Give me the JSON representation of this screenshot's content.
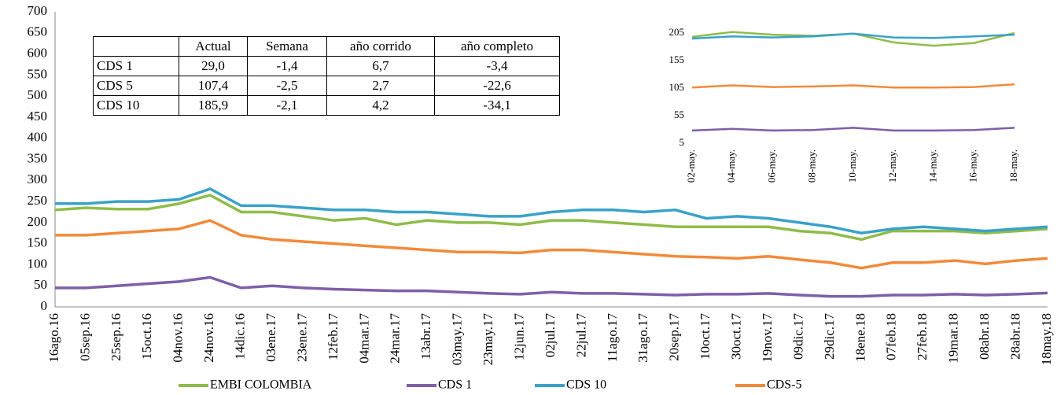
{
  "chart_data": [
    {
      "type": "line",
      "categories": [
        "16ago.16",
        "05sep.16",
        "25sep.16",
        "15oct.16",
        "04nov.16",
        "24nov.16",
        "14dic.16",
        "03ene.17",
        "23ene.17",
        "12feb.17",
        "04mar.17",
        "24mar.17",
        "13abr.17",
        "03may.17",
        "23may.17",
        "12jun.17",
        "02jul.17",
        "22jul.17",
        "11ago.17",
        "31ago.17",
        "20sep.17",
        "10oct.17",
        "30oct.17",
        "19nov.17",
        "09dic.17",
        "29dic.17",
        "18ene.18",
        "07feb.18",
        "27feb.18",
        "19mar.18",
        "08abr.18",
        "28abr.18",
        "18may.18"
      ],
      "series": [
        {
          "name": "EMBI COLOMBIA",
          "color": "#8fbc4a",
          "values": [
            230,
            235,
            232,
            232,
            245,
            265,
            225,
            225,
            215,
            205,
            210,
            195,
            205,
            200,
            200,
            195,
            205,
            205,
            200,
            195,
            190,
            190,
            190,
            190,
            180,
            175,
            160,
            180,
            180,
            180,
            175,
            180,
            185
          ]
        },
        {
          "name": "CDS 1",
          "color": "#7f5fa8",
          "values": [
            45,
            45,
            50,
            55,
            60,
            70,
            45,
            50,
            45,
            42,
            40,
            38,
            38,
            35,
            32,
            30,
            35,
            32,
            32,
            30,
            28,
            30,
            30,
            32,
            28,
            25,
            25,
            28,
            28,
            30,
            28,
            30,
            33
          ]
        },
        {
          "name": "CDS 10",
          "color": "#3aa2c8",
          "values": [
            245,
            245,
            250,
            250,
            255,
            280,
            240,
            240,
            235,
            230,
            230,
            225,
            225,
            220,
            215,
            215,
            225,
            230,
            230,
            225,
            230,
            210,
            215,
            210,
            200,
            190,
            175,
            185,
            190,
            185,
            180,
            185,
            190
          ]
        },
        {
          "name": "CDS-5",
          "color": "#f28a3a",
          "values": [
            170,
            170,
            175,
            180,
            185,
            205,
            170,
            160,
            155,
            150,
            145,
            140,
            135,
            130,
            130,
            128,
            135,
            135,
            130,
            125,
            120,
            118,
            115,
            120,
            112,
            105,
            92,
            105,
            105,
            110,
            102,
            110,
            115
          ]
        }
      ],
      "ylim": [
        0,
        700
      ],
      "yticks": [
        0,
        50,
        100,
        150,
        200,
        250,
        300,
        350,
        400,
        450,
        500,
        550,
        600,
        650,
        700
      ]
    },
    {
      "type": "line",
      "categories": [
        "02-may.",
        "04-may.",
        "06-may.",
        "08-may.",
        "10-may.",
        "12-may.",
        "14-may.",
        "16-may.",
        "18-may."
      ],
      "series": [
        {
          "color": "#8fbc4a",
          "values": [
            198,
            207,
            202,
            200,
            204,
            188,
            182,
            187,
            205
          ]
        },
        {
          "color": "#3aa2c8",
          "values": [
            195,
            199,
            197,
            199,
            204,
            197,
            196,
            199,
            202
          ]
        },
        {
          "color": "#f28a3a",
          "values": [
            106,
            110,
            107,
            108,
            110,
            106,
            106,
            107,
            112
          ]
        },
        {
          "color": "#7f5fa8",
          "values": [
            28,
            31,
            28,
            29,
            33,
            28,
            28,
            29,
            33
          ]
        }
      ],
      "ylim": [
        5,
        215
      ],
      "yticks": [
        5,
        55,
        105,
        155,
        205
      ]
    }
  ],
  "table": {
    "header": [
      "Actual",
      "Semana",
      "año corrido",
      "año completo"
    ],
    "rows": [
      [
        "CDS 1",
        "29,0",
        "-1,4",
        "6,7",
        "-3,4"
      ],
      [
        "CDS 5",
        "107,4",
        "-2,5",
        "2,7",
        "-22,6"
      ],
      [
        "CDS 10",
        "185,9",
        "-2,1",
        "4,2",
        "-34,1"
      ]
    ]
  }
}
